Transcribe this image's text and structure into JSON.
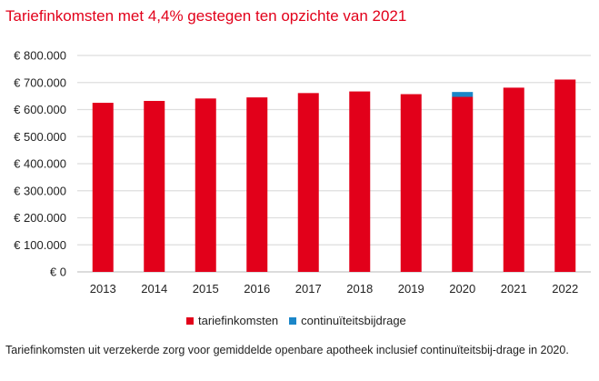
{
  "chart_data": {
    "type": "bar",
    "stacked": true,
    "title": "Tariefinkomsten met 4,4% gestegen ten opzichte van 2021",
    "xlabel": "",
    "ylabel": "",
    "categories": [
      "2013",
      "2014",
      "2015",
      "2016",
      "2017",
      "2018",
      "2019",
      "2020",
      "2021",
      "2022"
    ],
    "series": [
      {
        "name": "tariefinkomsten",
        "color": "#e2001a",
        "values": [
          625000,
          632000,
          641000,
          645000,
          661000,
          667000,
          657000,
          647000,
          681000,
          711000
        ]
      },
      {
        "name": "continuïteitsbijdrage",
        "color": "#1b86c8",
        "values": [
          0,
          0,
          0,
          0,
          0,
          0,
          0,
          18000,
          0,
          0
        ]
      }
    ],
    "ylim": [
      0,
      800000
    ],
    "yticks": [
      0,
      100000,
      200000,
      300000,
      400000,
      500000,
      600000,
      700000,
      800000
    ],
    "ytick_labels": [
      "€ 0",
      "€ 100.000",
      "€ 200.000",
      "€ 300.000",
      "€ 400.000",
      "€ 500.000",
      "€ 600.000",
      "€ 700.000",
      "€ 800.000"
    ],
    "grid": true,
    "legend_position": "bottom-center",
    "caption": "Tariefinkomsten uit verzekerde zorg voor gemiddelde openbare apotheek inclusief continuïteitsbij-drage in 2020."
  }
}
